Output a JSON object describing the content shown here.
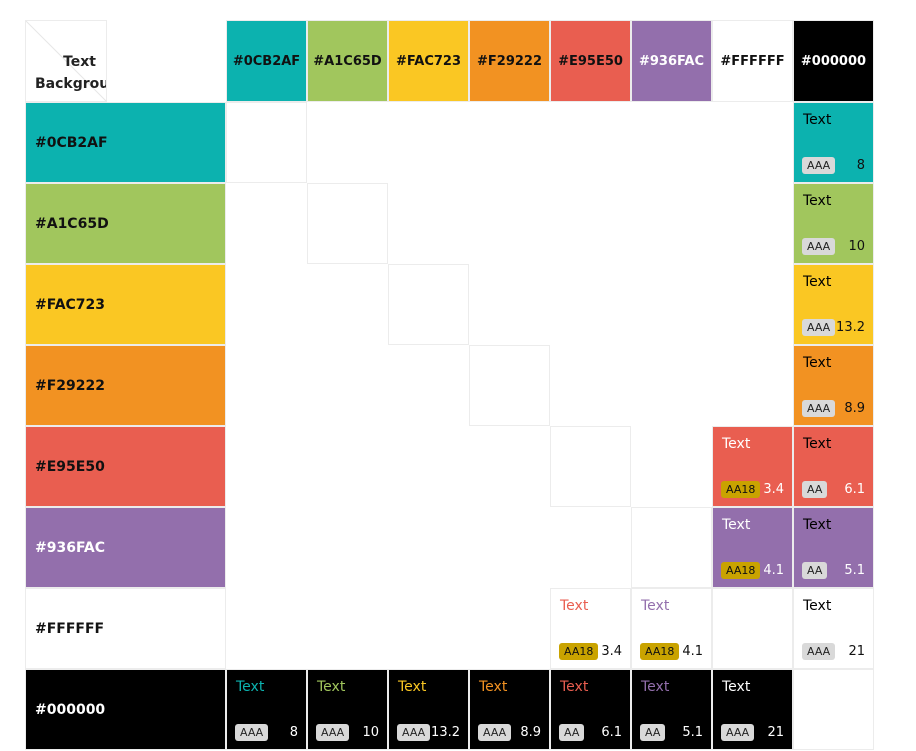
{
  "corner": {
    "text_label": "Text",
    "background_label": "Background"
  },
  "colors": [
    {
      "name": "#0CB2AF",
      "hex": "#0CB2AF"
    },
    {
      "name": "#A1C65D",
      "hex": "#A1C65D"
    },
    {
      "name": "#FAC723",
      "hex": "#FAC723"
    },
    {
      "name": "#F29222",
      "hex": "#F29222"
    },
    {
      "name": "#E95E50",
      "hex": "#E95E50"
    },
    {
      "name": "#936FAC",
      "hex": "#936FAC"
    },
    {
      "name": "#FFFFFF",
      "hex": "#FFFFFF"
    },
    {
      "name": "#000000",
      "hex": "#000000"
    }
  ],
  "header_text_colors": [
    "#111111",
    "#111111",
    "#111111",
    "#111111",
    "#111111",
    "#ffffff",
    "#111111",
    "#ffffff"
  ],
  "row_label_colors": [
    "#111111",
    "#111111",
    "#111111",
    "#111111",
    "#111111",
    "#ffffff",
    "#111111",
    "#ffffff"
  ],
  "sample_text": "Text",
  "badge_styles": {
    "AAA": {
      "bg": "#d9d9d9",
      "fg": "#222222"
    },
    "AA": {
      "bg": "#d9d9d9",
      "fg": "#222222"
    },
    "AA18": {
      "bg": "#c9a300",
      "fg": "#111111"
    }
  },
  "pairs": [
    {
      "bg": 0,
      "fg": 7,
      "badge": "AAA",
      "ratio": "8"
    },
    {
      "bg": 1,
      "fg": 7,
      "badge": "AAA",
      "ratio": "10"
    },
    {
      "bg": 2,
      "fg": 7,
      "badge": "AAA",
      "ratio": "13.2"
    },
    {
      "bg": 3,
      "fg": 7,
      "badge": "AAA",
      "ratio": "8.9"
    },
    {
      "bg": 4,
      "fg": 6,
      "badge": "AA18",
      "ratio": "3.4"
    },
    {
      "bg": 4,
      "fg": 7,
      "badge": "AA",
      "ratio": "6.1"
    },
    {
      "bg": 5,
      "fg": 6,
      "badge": "AA18",
      "ratio": "4.1"
    },
    {
      "bg": 5,
      "fg": 7,
      "badge": "AA",
      "ratio": "5.1"
    },
    {
      "bg": 6,
      "fg": 4,
      "badge": "AA18",
      "ratio": "3.4"
    },
    {
      "bg": 6,
      "fg": 5,
      "badge": "AA18",
      "ratio": "4.1"
    },
    {
      "bg": 6,
      "fg": 7,
      "badge": "AAA",
      "ratio": "21"
    },
    {
      "bg": 7,
      "fg": 0,
      "badge": "AAA",
      "ratio": "8"
    },
    {
      "bg": 7,
      "fg": 1,
      "badge": "AAA",
      "ratio": "10"
    },
    {
      "bg": 7,
      "fg": 2,
      "badge": "AAA",
      "ratio": "13.2"
    },
    {
      "bg": 7,
      "fg": 3,
      "badge": "AAA",
      "ratio": "8.9"
    },
    {
      "bg": 7,
      "fg": 4,
      "badge": "AA",
      "ratio": "6.1"
    },
    {
      "bg": 7,
      "fg": 5,
      "badge": "AA",
      "ratio": "5.1"
    },
    {
      "bg": 7,
      "fg": 6,
      "badge": "AAA",
      "ratio": "21"
    }
  ]
}
